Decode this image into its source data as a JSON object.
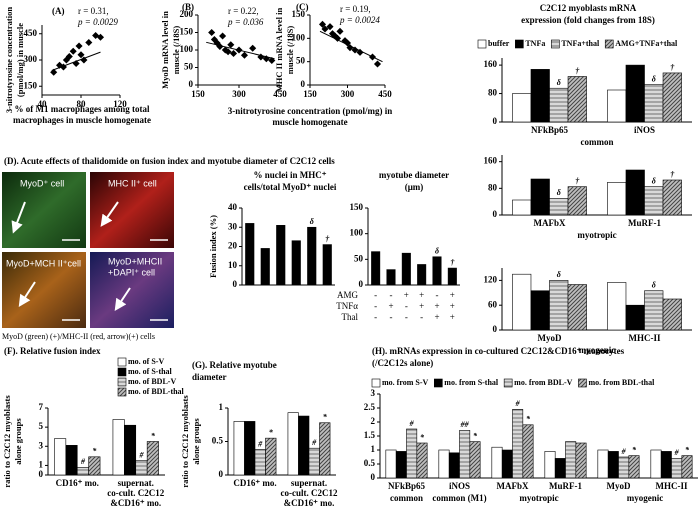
{
  "panel_D": {
    "title": "(D). Acute effects of thalidomide on fusion index and myotube diameter of C2C12 cells",
    "images": [
      "MyoD⁺ cell",
      "MHC II⁺ cell",
      "MyoD+MCH II⁺cell",
      "MyoD+MHCII",
      "+DAPI⁺ cell"
    ],
    "caption": "MyoD (green) (+)/MHC-II (red, arrow)(+) cells"
  },
  "chart_data": [
    {
      "type": "scatter",
      "title": "(A)",
      "annotation": [
        "r = 0.31,",
        "p = 0.0029"
      ],
      "color": "#000000",
      "xlabel": [
        "% of M1 macrophages among total",
        "macrophages in muscle homogenate"
      ],
      "ylabel": [
        "3-nitrotyrosine concentration",
        "(pmol/mg) in muscle"
      ],
      "x": [
        52,
        58,
        62,
        65,
        68,
        72,
        75,
        78,
        80,
        83,
        88,
        95,
        100
      ],
      "y": [
        230,
        270,
        260,
        300,
        320,
        350,
        280,
        380,
        330,
        300,
        400,
        440,
        430
      ],
      "trendline": {
        "x": [
          50,
          100
        ],
        "y": [
          240,
          345
        ]
      },
      "xlim": [
        40,
        120
      ],
      "xticks": [
        40,
        80,
        120
      ],
      "ylim": [
        100,
        500
      ],
      "yticks": [
        150,
        300,
        450
      ]
    },
    {
      "type": "scatter",
      "title": "(B)",
      "annotation": [
        "r = 0.22,",
        "p = 0.036"
      ],
      "color": "#000000",
      "xlabel": [
        "3-nitrotyrosine concentration (pmol/mg) in",
        "muscle homogenate"
      ],
      "ylabel": [
        "MyoD mRNA level in",
        "muscle (/18S)"
      ],
      "x": [
        200,
        210,
        220,
        230,
        240,
        250,
        260,
        270,
        280,
        300,
        320,
        350,
        380,
        400,
        420
      ],
      "y": [
        150,
        130,
        120,
        110,
        140,
        100,
        95,
        115,
        90,
        100,
        85,
        105,
        80,
        75,
        70
      ],
      "trendline": {
        "x": [
          180,
          430
        ],
        "y": [
          122,
          75
        ]
      },
      "xlim": [
        150,
        450
      ],
      "xticks": [
        150,
        300,
        450
      ],
      "ylim": [
        0,
        200
      ],
      "yticks": [
        0,
        50,
        100,
        150,
        200
      ]
    },
    {
      "type": "scatter",
      "title": "(C)",
      "annotation": [
        "r = 0.19,",
        "p = 0.0024"
      ],
      "color": "#000000",
      "ylabel": [
        "MHC II mRNA level in",
        "muscle (/18S)"
      ],
      "x": [
        200,
        210,
        230,
        240,
        250,
        260,
        270,
        290,
        300,
        310,
        330,
        350,
        400,
        420
      ],
      "y": [
        130,
        120,
        125,
        110,
        105,
        100,
        115,
        95,
        90,
        80,
        75,
        70,
        60,
        45
      ],
      "trendline": {
        "x": [
          190,
          440
        ],
        "y": [
          115,
          50
        ]
      },
      "xlim": [
        150,
        450
      ],
      "xticks": [
        150,
        300,
        450
      ],
      "ylim": [
        0,
        150
      ],
      "yticks": [
        0,
        50,
        100,
        150
      ]
    },
    {
      "type": "bar",
      "title": [
        "% nuclei in MHC⁺",
        "cells/total MyoD⁺ nuclei"
      ],
      "ylabel": [
        "Fusion index (%)"
      ],
      "color": "#000000",
      "categories": [
        null,
        null,
        null,
        null,
        null,
        null
      ],
      "values": [
        32,
        19,
        31,
        23,
        30,
        21
      ],
      "sig": [
        null,
        null,
        null,
        null,
        "δ",
        "†"
      ],
      "ylim": [
        0,
        40
      ],
      "yticks": [
        0,
        10,
        20,
        30,
        40
      ]
    },
    {
      "type": "bar",
      "title": [
        "myotube diameter",
        "(μm)"
      ],
      "color": "#000000",
      "categories": [
        null,
        null,
        null,
        null,
        null,
        null
      ],
      "values": [
        65,
        30,
        62,
        40,
        55,
        33
      ],
      "sig": [
        null,
        null,
        null,
        null,
        "δ",
        "†"
      ],
      "ylim": [
        0,
        150
      ],
      "yticks": [
        0,
        50,
        100,
        150
      ],
      "treatments": [
        {
          "name": "AMG",
          "signs": [
            "-",
            "-",
            "+",
            "+",
            "-",
            "+"
          ]
        },
        {
          "name": "TNFα",
          "signs": [
            "-",
            "+",
            "-",
            "+",
            "+",
            "+"
          ]
        },
        {
          "name": "Thal",
          "signs": [
            "-",
            "-",
            "-",
            "-",
            "+",
            "+"
          ]
        }
      ]
    },
    {
      "type": "bar",
      "title": [
        "C2C12 myoblasts mRNA",
        "expression (fold changes from 18S)"
      ],
      "categories": [
        "NFkBp65",
        "iNOS"
      ],
      "groups": [
        {
          "label": "common",
          "categories": [
            "NFkBp65",
            "iNOS"
          ]
        }
      ],
      "series": [
        {
          "name": "buffer",
          "color": "#ffffff",
          "values": [
            80,
            90
          ]
        },
        {
          "name": "TNFa",
          "color": "#000000",
          "values": [
            148,
            160
          ]
        },
        {
          "name": "TNFa+thal",
          "color": "#d9d9d9",
          "pattern": "horizontal",
          "values": [
            95,
            105
          ],
          "sig": [
            "δ",
            "δ"
          ]
        },
        {
          "name": "AMG+TNFa+thal",
          "color": "#bfbfbf",
          "pattern": "diagonal",
          "values": [
            128,
            138
          ],
          "sig": [
            "†",
            "†"
          ]
        }
      ],
      "ylim": [
        0,
        180
      ],
      "yticks": [
        0,
        80,
        160
      ]
    },
    {
      "type": "bar",
      "categories": [
        "MAFbX",
        "MuRF-1"
      ],
      "groups": [
        {
          "label": "myotropic",
          "categories": [
            "MAFbX",
            "MuRF-1"
          ]
        }
      ],
      "series": [
        {
          "color": "#ffffff",
          "values": [
            45,
            98
          ]
        },
        {
          "color": "#000000",
          "values": [
            108,
            135
          ]
        },
        {
          "color": "#d9d9d9",
          "pattern": "horizontal",
          "values": [
            50,
            85
          ],
          "sig": [
            "δ",
            "δ"
          ]
        },
        {
          "color": "#bfbfbf",
          "pattern": "diagonal",
          "values": [
            85,
            105
          ],
          "sig": [
            "†",
            "†"
          ]
        }
      ],
      "ylim": [
        0,
        180
      ],
      "yticks": [
        0,
        80,
        160
      ]
    },
    {
      "type": "bar",
      "categories": [
        "MyoD",
        "MHC-II"
      ],
      "groups": [
        {
          "label": "myogenic",
          "categories": [
            "MyoD",
            "MHC-II"
          ]
        }
      ],
      "series": [
        {
          "color": "#ffffff",
          "values": [
            135,
            115
          ]
        },
        {
          "color": "#000000",
          "values": [
            95,
            60
          ]
        },
        {
          "color": "#d9d9d9",
          "pattern": "horizontal",
          "values": [
            120,
            95
          ],
          "sig": [
            "δ",
            "δ"
          ]
        },
        {
          "color": "#bfbfbf",
          "pattern": "diagonal",
          "values": [
            110,
            75
          ]
        }
      ],
      "ylim": [
        0,
        150
      ],
      "yticks": [
        0,
        60,
        120
      ]
    },
    {
      "type": "bar",
      "title": "(F). Relative fusion index",
      "ylabel": [
        "ratio to C2C12 myoblasts",
        "alone groups"
      ],
      "categories": [
        "CD16⁺ mo.",
        "supernat. co-cult. C2C12 &CD16⁺ mo."
      ],
      "series": [
        {
          "name": "mo. of S-V",
          "color": "#ffffff",
          "values": [
            3.8,
            5.8
          ]
        },
        {
          "name": "mo. of S-thal",
          "color": "#000000",
          "values": [
            3.1,
            5.2
          ]
        },
        {
          "name": "mo. of BDL-V",
          "color": "#d9d9d9",
          "pattern": "horizontal",
          "values": [
            0.8,
            1.5
          ],
          "sig": [
            "#",
            "#"
          ]
        },
        {
          "name": "mo. of BDL-thal",
          "color": "#bfbfbf",
          "pattern": "diagonal",
          "values": [
            1.9,
            3.5
          ],
          "sig": [
            "*",
            "*"
          ]
        }
      ],
      "ylim": [
        0,
        7
      ],
      "yticks": [
        0,
        1,
        3,
        5,
        7
      ]
    },
    {
      "type": "bar",
      "title": [
        "(G). Relative myotube",
        "diameter"
      ],
      "ylabel": [
        "ratio to C2C12 myoblasts",
        "alone groups"
      ],
      "categories": [
        "CD16⁺ mo.",
        "supernat. co-cult. C2C12 &CD16⁺ mo."
      ],
      "series": [
        {
          "color": "#ffffff",
          "values": [
            0.8,
            0.93
          ]
        },
        {
          "color": "#000000",
          "values": [
            0.8,
            0.88
          ]
        },
        {
          "color": "#d9d9d9",
          "pattern": "horizontal",
          "values": [
            0.38,
            0.4
          ],
          "sig": [
            "#",
            "#"
          ]
        },
        {
          "color": "#bfbfbf",
          "pattern": "diagonal",
          "values": [
            0.55,
            0.78
          ],
          "sig": [
            "*",
            "*"
          ]
        }
      ],
      "ylim": [
        0,
        1
      ],
      "yticks": [
        0,
        0.5,
        1
      ]
    },
    {
      "type": "bar",
      "title": [
        "(H). mRNAs expression in co-cultured C2C12&CD16⁺ monocytes",
        "(/C2C12s alone)"
      ],
      "categories": [
        "NFkBp65",
        "iNOS",
        "MAFbX",
        "MuRF-1",
        "MyoD",
        "MHC-II"
      ],
      "groups": [
        {
          "label": "common",
          "categories": [
            "NFkBp65"
          ]
        },
        {
          "label": "common (M1)",
          "categories": [
            "iNOS"
          ]
        },
        {
          "label": "myotropic",
          "categories": [
            "MAFbX",
            "MuRF-1"
          ]
        },
        {
          "label": "myogenic",
          "categories": [
            "MyoD",
            "MHC-II"
          ]
        }
      ],
      "series": [
        {
          "name": "mo. from S-V",
          "color": "#ffffff",
          "values": [
            1.0,
            1.0,
            1.1,
            0.95,
            1.0,
            1.0
          ]
        },
        {
          "name": "mo. from S-thal",
          "color": "#000000",
          "values": [
            0.95,
            0.9,
            1.0,
            0.7,
            0.95,
            0.95
          ]
        },
        {
          "name": "mo. from BDL-V",
          "color": "#d9d9d9",
          "pattern": "horizontal",
          "values": [
            1.75,
            1.7,
            2.45,
            1.3,
            0.75,
            0.7
          ],
          "sig": [
            "#",
            "##",
            "#",
            null,
            "#",
            "#"
          ]
        },
        {
          "name": "mo. from BDL-thal",
          "color": "#bfbfbf",
          "pattern": "diagonal",
          "values": [
            1.25,
            1.3,
            1.9,
            1.25,
            0.8,
            0.8
          ],
          "sig": [
            "*",
            "*",
            "*",
            null,
            "*",
            "*"
          ]
        }
      ],
      "ylim": [
        0,
        3
      ],
      "yticks": [
        0,
        0.5,
        1,
        1.5,
        2,
        2.5,
        3
      ]
    }
  ]
}
